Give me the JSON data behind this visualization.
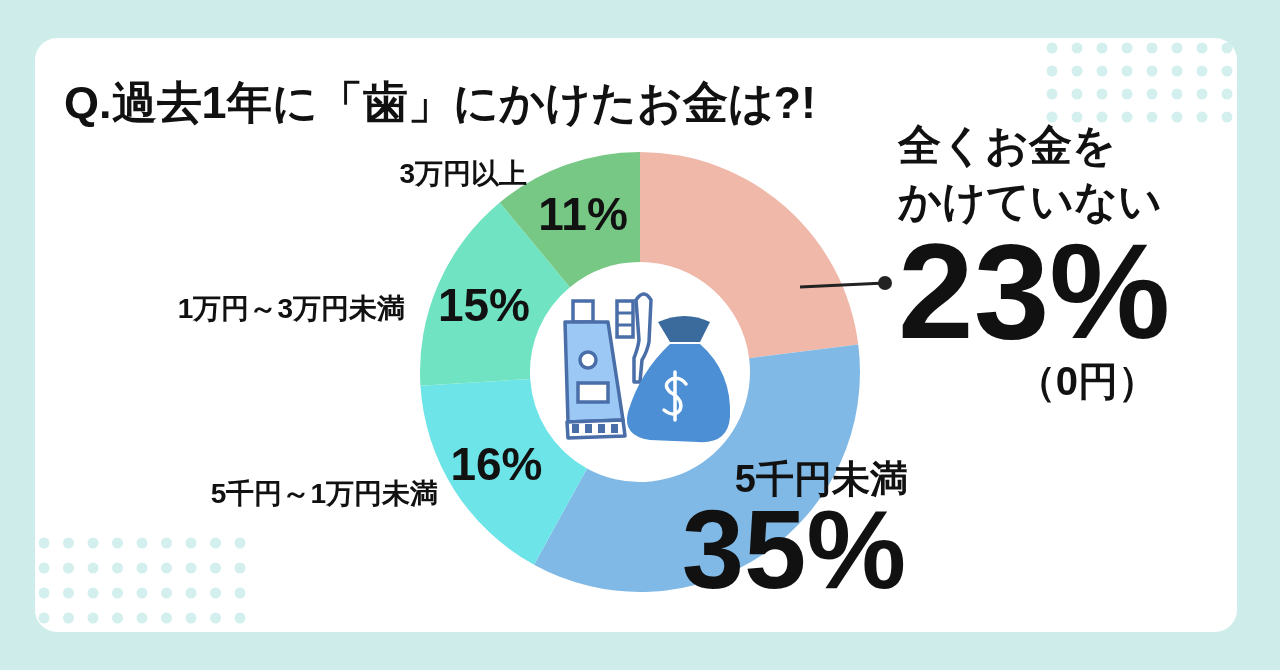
{
  "chart_data": {
    "type": "donut",
    "title": "Q.過去1年に「歯」にかけたお金は?!",
    "categories": [
      "全くお金をかけていない",
      "5千円未満",
      "5千円～1万円未満",
      "1万円～3万円未満",
      "3万円以上"
    ],
    "values": [
      23,
      35,
      16,
      15,
      11
    ],
    "value_labels": [
      "23%",
      "35%",
      "16%",
      "15%",
      "11%"
    ],
    "colors": [
      "#efb8a9",
      "#80b9e6",
      "#6de4e8",
      "#70e4c2",
      "#76c884"
    ],
    "annotations": [
      "（0円）"
    ]
  }
}
